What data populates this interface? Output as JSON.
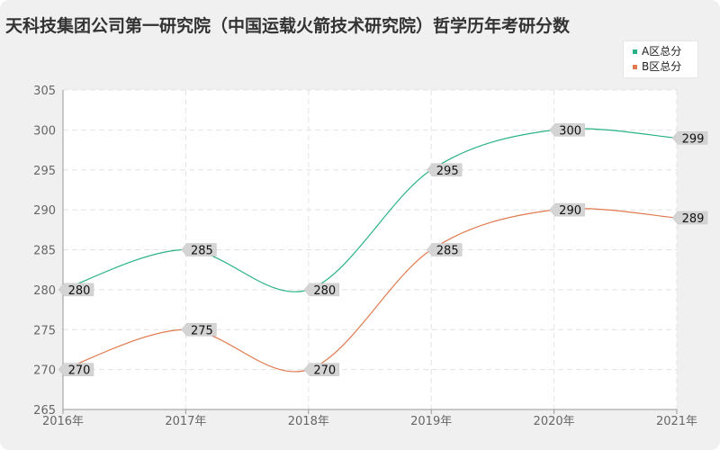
{
  "chart_data": {
    "type": "line",
    "title": "天科技集团公司第一研究院（中国运载火箭技术研究院）哲学历年考研分数",
    "categories": [
      "2016年",
      "2017年",
      "2018年",
      "2019年",
      "2020年",
      "2021年"
    ],
    "series": [
      {
        "name": "A区总分",
        "color": "#2ab285",
        "values": [
          280,
          285,
          280,
          295,
          300,
          299
        ]
      },
      {
        "name": "B区总分",
        "color": "#e07a4e",
        "values": [
          270,
          275,
          270,
          285,
          290,
          289
        ]
      }
    ],
    "yticks": [
      "265",
      "270",
      "275",
      "280",
      "285",
      "290",
      "295",
      "300",
      "305"
    ],
    "ylim": [
      265,
      305
    ],
    "grid": true,
    "legend_position": "top-right"
  }
}
